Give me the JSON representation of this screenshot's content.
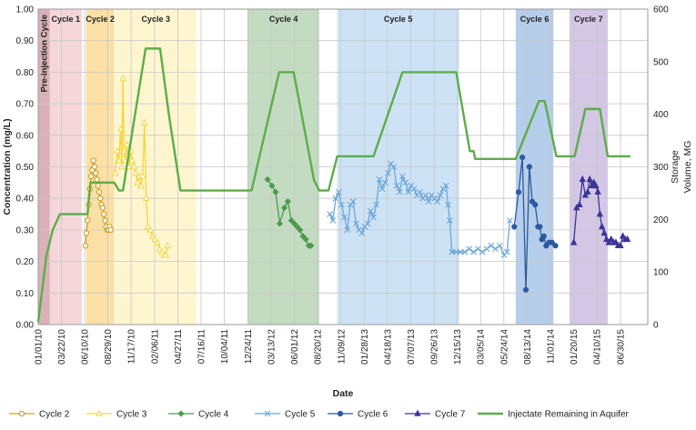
{
  "chart_data": {
    "type": "line",
    "xlabel": "Date",
    "ylabel_left": "Concentration (mg/L)",
    "ylabel_right_lines": [
      "Storage",
      "Volume, MG"
    ],
    "ylim_left": [
      0,
      1.0
    ],
    "ylim_right": [
      0,
      600
    ],
    "left_ticks": [
      "0.00",
      "0.10",
      "0.20",
      "0.30",
      "0.40",
      "0.50",
      "0.60",
      "0.70",
      "0.80",
      "0.90",
      "1.00"
    ],
    "right_ticks": [
      "0",
      "100",
      "200",
      "300",
      "400",
      "500",
      "600"
    ],
    "x_range_days": [
      0,
      2100
    ],
    "x_ticks": [
      {
        "label": "01/01/10",
        "day": 0
      },
      {
        "label": "03/22/10",
        "day": 80
      },
      {
        "label": "06/10/10",
        "day": 160
      },
      {
        "label": "08/29/10",
        "day": 240
      },
      {
        "label": "11/17/10",
        "day": 320
      },
      {
        "label": "02/06/11",
        "day": 401
      },
      {
        "label": "04/27/11",
        "day": 481
      },
      {
        "label": "07/16/11",
        "day": 561
      },
      {
        "label": "10/04/11",
        "day": 641
      },
      {
        "label": "12/24/11",
        "day": 722
      },
      {
        "label": "03/13/12",
        "day": 802
      },
      {
        "label": "06/01/12",
        "day": 882
      },
      {
        "label": "08/20/12",
        "day": 962
      },
      {
        "label": "11/09/12",
        "day": 1043
      },
      {
        "label": "01/28/13",
        "day": 1123
      },
      {
        "label": "04/18/13",
        "day": 1203
      },
      {
        "label": "07/07/13",
        "day": 1283
      },
      {
        "label": "09/26/13",
        "day": 1364
      },
      {
        "label": "12/15/13",
        "day": 1444
      },
      {
        "label": "03/05/14",
        "day": 1524
      },
      {
        "label": "05/24/14",
        "day": 1604
      },
      {
        "label": "08/13/14",
        "day": 1685
      },
      {
        "label": "11/01/14",
        "day": 1765
      },
      {
        "label": "01/20/15",
        "day": 1845
      },
      {
        "label": "04/10/15",
        "day": 1925
      },
      {
        "label": "06/30/15",
        "day": 2006
      }
    ],
    "bands": [
      {
        "label": "Pre-injection Cycle",
        "start": 0,
        "end": 40,
        "color": "#d3a3ac",
        "vertical": true
      },
      {
        "label": "Cycle 1",
        "start": 40,
        "end": 150,
        "color": "#f3cfd4"
      },
      {
        "label": "Cycle 2",
        "start": 165,
        "end": 262,
        "color": "#fbd994"
      },
      {
        "label": "Cycle 3",
        "start": 265,
        "end": 545,
        "color": "#fff4c8"
      },
      {
        "label": "Cycle 4",
        "start": 722,
        "end": 968,
        "color": "#b8d5b6"
      },
      {
        "label": "Cycle 5",
        "start": 1030,
        "end": 1450,
        "color": "#c4def3"
      },
      {
        "label": "Cycle 6",
        "start": 1645,
        "end": 1775,
        "color": "#a8c6e8"
      },
      {
        "label": "Cycle 7",
        "start": 1830,
        "end": 1962,
        "color": "#cbbde0"
      }
    ],
    "series": [
      {
        "name": "Cycle 2",
        "color": "#c9a227",
        "marker": "circle-open",
        "values": [
          [
            163,
            0.25
          ],
          [
            166,
            0.29
          ],
          [
            170,
            0.33
          ],
          [
            174,
            0.38
          ],
          [
            178,
            0.43
          ],
          [
            182,
            0.47
          ],
          [
            186,
            0.49
          ],
          [
            190,
            0.52
          ],
          [
            194,
            0.5
          ],
          [
            198,
            0.48
          ],
          [
            202,
            0.46
          ],
          [
            206,
            0.44
          ],
          [
            210,
            0.42
          ],
          [
            214,
            0.4
          ],
          [
            218,
            0.38
          ],
          [
            222,
            0.37
          ],
          [
            226,
            0.35
          ],
          [
            230,
            0.33
          ],
          [
            234,
            0.31
          ],
          [
            238,
            0.3
          ],
          [
            242,
            0.3
          ],
          [
            246,
            0.31
          ],
          [
            250,
            0.3
          ]
        ]
      },
      {
        "name": "Cycle 3",
        "color": "#f2d63b",
        "marker": "triangle-open",
        "values": [
          [
            265,
            0.48
          ],
          [
            272,
            0.55
          ],
          [
            278,
            0.52
          ],
          [
            284,
            0.62
          ],
          [
            288,
            0.5
          ],
          [
            292,
            0.78
          ],
          [
            296,
            0.55
          ],
          [
            300,
            0.52
          ],
          [
            306,
            0.57
          ],
          [
            312,
            0.5
          ],
          [
            318,
            0.55
          ],
          [
            324,
            0.52
          ],
          [
            330,
            0.5
          ],
          [
            336,
            0.48
          ],
          [
            342,
            0.45
          ],
          [
            348,
            0.47
          ],
          [
            354,
            0.44
          ],
          [
            360,
            0.47
          ],
          [
            366,
            0.64
          ],
          [
            372,
            0.4
          ],
          [
            378,
            0.31
          ],
          [
            386,
            0.3
          ],
          [
            394,
            0.28
          ],
          [
            402,
            0.27
          ],
          [
            410,
            0.26
          ],
          [
            418,
            0.24
          ],
          [
            426,
            0.23
          ],
          [
            434,
            0.22
          ],
          [
            440,
            0.22
          ],
          [
            446,
            0.25
          ]
        ]
      },
      {
        "name": "Cycle 4",
        "color": "#4c9a4c",
        "marker": "diamond",
        "values": [
          [
            790,
            0.46
          ],
          [
            805,
            0.44
          ],
          [
            818,
            0.42
          ],
          [
            832,
            0.32
          ],
          [
            848,
            0.37
          ],
          [
            860,
            0.39
          ],
          [
            872,
            0.33
          ],
          [
            882,
            0.32
          ],
          [
            892,
            0.31
          ],
          [
            902,
            0.3
          ],
          [
            912,
            0.28
          ],
          [
            922,
            0.27
          ],
          [
            932,
            0.25
          ],
          [
            940,
            0.25
          ]
        ]
      },
      {
        "name": "Cycle 5",
        "color": "#6ba6d8",
        "marker": "x",
        "values": [
          [
            1005,
            0.35
          ],
          [
            1015,
            0.33
          ],
          [
            1025,
            0.4
          ],
          [
            1035,
            0.42
          ],
          [
            1045,
            0.38
          ],
          [
            1055,
            0.34
          ],
          [
            1065,
            0.3
          ],
          [
            1075,
            0.38
          ],
          [
            1085,
            0.39
          ],
          [
            1095,
            0.32
          ],
          [
            1105,
            0.3
          ],
          [
            1115,
            0.29
          ],
          [
            1125,
            0.31
          ],
          [
            1135,
            0.32
          ],
          [
            1145,
            0.36
          ],
          [
            1155,
            0.34
          ],
          [
            1165,
            0.38
          ],
          [
            1175,
            0.46
          ],
          [
            1185,
            0.43
          ],
          [
            1195,
            0.45
          ],
          [
            1205,
            0.48
          ],
          [
            1215,
            0.51
          ],
          [
            1225,
            0.5
          ],
          [
            1235,
            0.44
          ],
          [
            1245,
            0.42
          ],
          [
            1255,
            0.47
          ],
          [
            1265,
            0.45
          ],
          [
            1275,
            0.42
          ],
          [
            1285,
            0.44
          ],
          [
            1295,
            0.43
          ],
          [
            1305,
            0.41
          ],
          [
            1315,
            0.42
          ],
          [
            1325,
            0.4
          ],
          [
            1335,
            0.41
          ],
          [
            1345,
            0.39
          ],
          [
            1355,
            0.41
          ],
          [
            1365,
            0.4
          ],
          [
            1375,
            0.39
          ],
          [
            1385,
            0.41
          ],
          [
            1395,
            0.43
          ],
          [
            1405,
            0.44
          ],
          [
            1412,
            0.38
          ],
          [
            1418,
            0.33
          ],
          [
            1425,
            0.23
          ],
          [
            1440,
            0.23
          ],
          [
            1455,
            0.23
          ],
          [
            1470,
            0.23
          ],
          [
            1485,
            0.24
          ],
          [
            1500,
            0.23
          ],
          [
            1515,
            0.24
          ],
          [
            1530,
            0.23
          ],
          [
            1545,
            0.24
          ],
          [
            1560,
            0.25
          ],
          [
            1575,
            0.24
          ],
          [
            1590,
            0.25
          ],
          [
            1605,
            0.22
          ],
          [
            1615,
            0.23
          ],
          [
            1625,
            0.33
          ]
        ]
      },
      {
        "name": "Cycle 6",
        "color": "#2b5aa0",
        "marker": "circle",
        "values": [
          [
            1640,
            0.31
          ],
          [
            1655,
            0.42
          ],
          [
            1668,
            0.53
          ],
          [
            1680,
            0.11
          ],
          [
            1692,
            0.5
          ],
          [
            1702,
            0.39
          ],
          [
            1712,
            0.38
          ],
          [
            1722,
            0.31
          ],
          [
            1728,
            0.31
          ],
          [
            1735,
            0.27
          ],
          [
            1742,
            0.28
          ],
          [
            1750,
            0.25
          ],
          [
            1760,
            0.26
          ],
          [
            1770,
            0.26
          ],
          [
            1782,
            0.25
          ]
        ]
      },
      {
        "name": "Cycle 7",
        "color": "#3a3596",
        "marker": "triangle",
        "values": [
          [
            1845,
            0.26
          ],
          [
            1855,
            0.37
          ],
          [
            1865,
            0.38
          ],
          [
            1875,
            0.46
          ],
          [
            1885,
            0.41
          ],
          [
            1893,
            0.42
          ],
          [
            1900,
            0.46
          ],
          [
            1907,
            0.44
          ],
          [
            1914,
            0.45
          ],
          [
            1921,
            0.44
          ],
          [
            1928,
            0.42
          ],
          [
            1935,
            0.35
          ],
          [
            1942,
            0.31
          ],
          [
            1950,
            0.29
          ],
          [
            1958,
            0.27
          ],
          [
            1966,
            0.26
          ],
          [
            1974,
            0.27
          ],
          [
            1982,
            0.26
          ],
          [
            1990,
            0.26
          ],
          [
            1998,
            0.25
          ],
          [
            2006,
            0.25
          ],
          [
            2014,
            0.28
          ],
          [
            2022,
            0.27
          ],
          [
            2030,
            0.27
          ]
        ]
      },
      {
        "name": "Injectate Remaining in Aquifer",
        "color": "#5cad4a",
        "marker": "none",
        "axis": "right",
        "values": [
          [
            0,
            5
          ],
          [
            28,
            130
          ],
          [
            50,
            180
          ],
          [
            75,
            210
          ],
          [
            170,
            210
          ],
          [
            180,
            270
          ],
          [
            262,
            270
          ],
          [
            278,
            255
          ],
          [
            292,
            255
          ],
          [
            325,
            370
          ],
          [
            370,
            525
          ],
          [
            420,
            525
          ],
          [
            450,
            400
          ],
          [
            490,
            255
          ],
          [
            735,
            255
          ],
          [
            830,
            480
          ],
          [
            880,
            480
          ],
          [
            950,
            275
          ],
          [
            968,
            255
          ],
          [
            1000,
            255
          ],
          [
            1030,
            320
          ],
          [
            1155,
            320
          ],
          [
            1255,
            480
          ],
          [
            1440,
            480
          ],
          [
            1487,
            330
          ],
          [
            1500,
            330
          ],
          [
            1505,
            315
          ],
          [
            1645,
            315
          ],
          [
            1725,
            425
          ],
          [
            1745,
            425
          ],
          [
            1785,
            320
          ],
          [
            1848,
            320
          ],
          [
            1885,
            410
          ],
          [
            1935,
            410
          ],
          [
            1962,
            320
          ],
          [
            2040,
            320
          ]
        ]
      }
    ],
    "legend": [
      {
        "label": "Cycle 2",
        "color": "#c9a227",
        "marker": "circle-open"
      },
      {
        "label": "Cycle 3",
        "color": "#f2d63b",
        "marker": "triangle-open"
      },
      {
        "label": "Cycle 4",
        "color": "#4c9a4c",
        "marker": "diamond"
      },
      {
        "label": "Cycle 5",
        "color": "#6ba6d8",
        "marker": "x"
      },
      {
        "label": "Cycle 6",
        "color": "#2b5aa0",
        "marker": "circle"
      },
      {
        "label": "Cycle 7",
        "color": "#3a3596",
        "marker": "triangle"
      },
      {
        "label": "Injectate Remaining in Aquifer",
        "color": "#5cad4a",
        "marker": "none"
      }
    ]
  }
}
